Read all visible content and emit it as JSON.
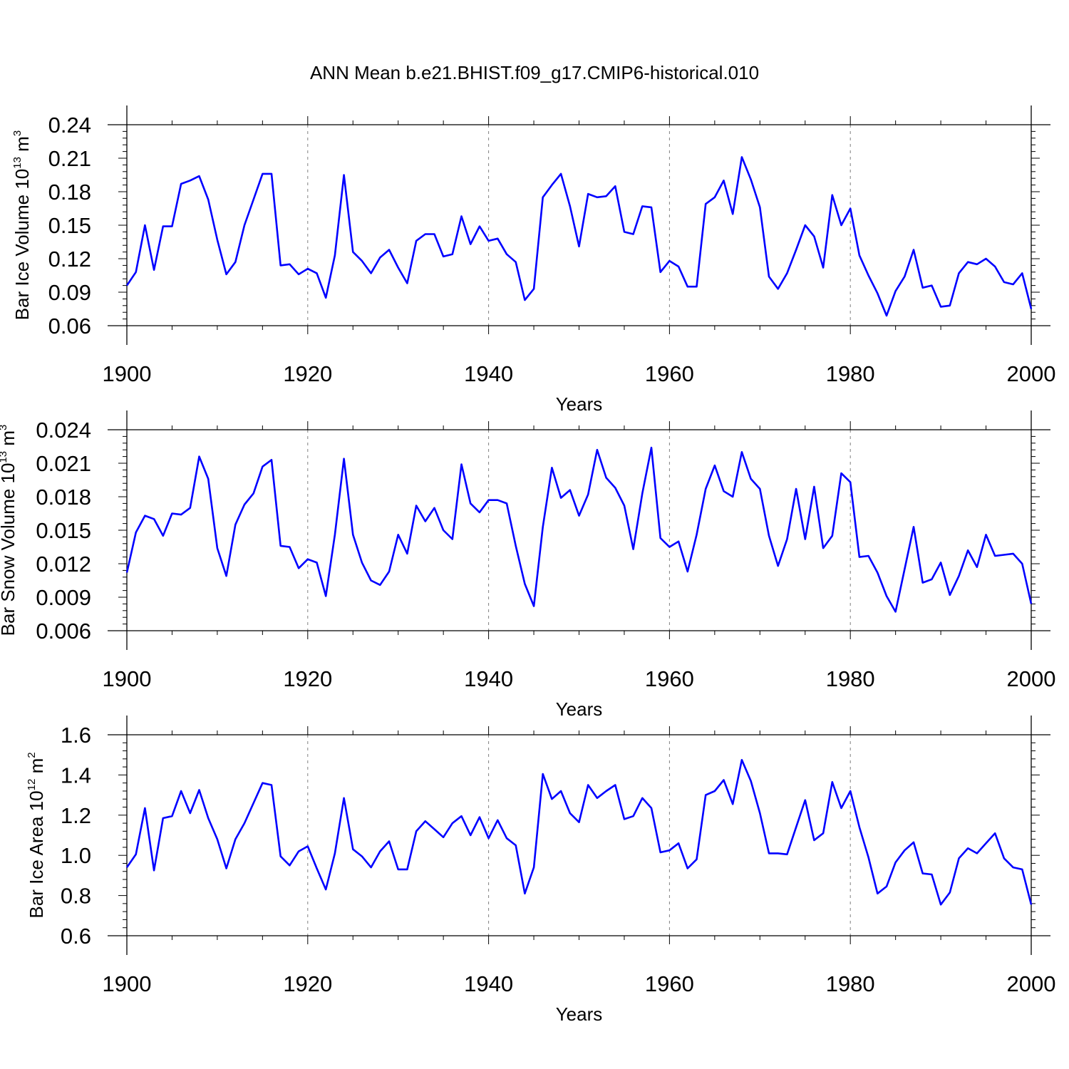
{
  "title": "ANN Mean b.e21.BHIST.f09_g17.CMIP6-historical.010",
  "colors": {
    "series": "#0000ff",
    "axis": "#000000",
    "grid": "#808080"
  },
  "chart_data": [
    {
      "type": "line",
      "title": "ANN Mean b.e21.BHIST.f09_g17.CMIP6-historical.010",
      "xlabel": "Years",
      "ylabel": {
        "text": "Bar Ice Volume 10",
        "exp": "13",
        "unit": " m",
        "unit_exp": "3"
      },
      "xlim": [
        1900,
        2000
      ],
      "ylim": [
        0.06,
        0.24
      ],
      "xticks": [
        1900,
        1920,
        1940,
        1960,
        1980,
        2000
      ],
      "xtick_labels": [
        "1900",
        "1920",
        "1940",
        "1960",
        "1980",
        "2000"
      ],
      "yticks": [
        0.06,
        0.09,
        0.12,
        0.15,
        0.18,
        0.21,
        0.24
      ],
      "ytick_labels": [
        "0.06",
        "0.09",
        "0.12",
        "0.15",
        "0.18",
        "0.21",
        "0.24"
      ],
      "grid_x": [
        1920,
        1940,
        1960,
        1980
      ],
      "series": [
        {
          "name": "Bar Ice Volume",
          "x_start": 1900,
          "values": [
            0.096,
            0.108,
            0.15,
            0.11,
            0.149,
            0.149,
            0.187,
            0.19,
            0.194,
            0.173,
            0.137,
            0.106,
            0.117,
            0.15,
            0.173,
            0.196,
            0.196,
            0.114,
            0.115,
            0.106,
            0.111,
            0.107,
            0.085,
            0.123,
            0.195,
            0.126,
            0.118,
            0.107,
            0.121,
            0.128,
            0.112,
            0.098,
            0.136,
            0.142,
            0.142,
            0.122,
            0.124,
            0.158,
            0.133,
            0.149,
            0.136,
            0.138,
            0.124,
            0.117,
            0.083,
            0.093,
            0.175,
            0.186,
            0.196,
            0.167,
            0.131,
            0.178,
            0.175,
            0.176,
            0.185,
            0.144,
            0.142,
            0.167,
            0.166,
            0.108,
            0.118,
            0.113,
            0.095,
            0.095,
            0.169,
            0.175,
            0.19,
            0.16,
            0.211,
            0.191,
            0.166,
            0.104,
            0.093,
            0.107,
            0.128,
            0.15,
            0.14,
            0.112,
            0.177,
            0.15,
            0.165,
            0.123,
            0.105,
            0.089,
            0.069,
            0.091,
            0.104,
            0.128,
            0.094,
            0.096,
            0.077,
            0.078,
            0.107,
            0.117,
            0.115,
            0.12,
            0.113,
            0.099,
            0.097,
            0.107,
            0.075
          ]
        }
      ]
    },
    {
      "type": "line",
      "title": "",
      "xlabel": "Years",
      "ylabel": {
        "text": "Bar Snow Volume 10",
        "exp": "13",
        "unit": " m",
        "unit_exp": "3"
      },
      "xlim": [
        1900,
        2000
      ],
      "ylim": [
        0.006,
        0.024
      ],
      "xticks": [
        1900,
        1920,
        1940,
        1960,
        1980,
        2000
      ],
      "xtick_labels": [
        "1900",
        "1920",
        "1940",
        "1960",
        "1980",
        "2000"
      ],
      "yticks": [
        0.006,
        0.009,
        0.012,
        0.015,
        0.018,
        0.021,
        0.024
      ],
      "ytick_labels": [
        "0.006",
        "0.009",
        "0.012",
        "0.015",
        "0.018",
        "0.021",
        "0.024"
      ],
      "grid_x": [
        1920,
        1940,
        1960,
        1980
      ],
      "series": [
        {
          "name": "Bar Snow Volume",
          "x_start": 1900,
          "values": [
            0.0112,
            0.0148,
            0.0163,
            0.016,
            0.0145,
            0.0165,
            0.0164,
            0.017,
            0.0216,
            0.0196,
            0.0134,
            0.0109,
            0.0155,
            0.0173,
            0.0183,
            0.0207,
            0.0213,
            0.0136,
            0.0135,
            0.0116,
            0.0124,
            0.0121,
            0.0091,
            0.0146,
            0.0214,
            0.0146,
            0.0121,
            0.0105,
            0.0101,
            0.0113,
            0.0146,
            0.0129,
            0.0172,
            0.0158,
            0.017,
            0.015,
            0.0142,
            0.0209,
            0.0174,
            0.0166,
            0.0177,
            0.0177,
            0.0174,
            0.0136,
            0.0102,
            0.0082,
            0.0153,
            0.0206,
            0.0179,
            0.0186,
            0.0163,
            0.0182,
            0.0222,
            0.0197,
            0.0188,
            0.0172,
            0.0133,
            0.0183,
            0.0224,
            0.0143,
            0.0135,
            0.014,
            0.0113,
            0.0146,
            0.0187,
            0.0208,
            0.0185,
            0.018,
            0.022,
            0.0196,
            0.0187,
            0.0145,
            0.0118,
            0.0142,
            0.0187,
            0.0142,
            0.0189,
            0.0134,
            0.0145,
            0.0201,
            0.0193,
            0.0126,
            0.0127,
            0.0112,
            0.0091,
            0.0077,
            0.0115,
            0.0153,
            0.0103,
            0.0106,
            0.0121,
            0.0092,
            0.0109,
            0.0132,
            0.0117,
            0.0146,
            0.0127,
            0.0128,
            0.0129,
            0.012,
            0.0084
          ]
        }
      ]
    },
    {
      "type": "line",
      "title": "",
      "xlabel": "Years",
      "ylabel": {
        "text": "Bar Ice Area 10",
        "exp": "12",
        "unit": " m",
        "unit_exp": "2"
      },
      "xlim": [
        1900,
        2000
      ],
      "ylim": [
        0.6,
        1.6
      ],
      "xticks": [
        1900,
        1920,
        1940,
        1960,
        1980,
        2000
      ],
      "xtick_labels": [
        "1900",
        "1920",
        "1940",
        "1960",
        "1980",
        "2000"
      ],
      "yticks": [
        0.6,
        0.8,
        1.0,
        1.2,
        1.4,
        1.6
      ],
      "ytick_labels": [
        "0.6",
        "0.8",
        "1.0",
        "1.2",
        "1.4",
        "1.6"
      ],
      "grid_x": [
        1920,
        1940,
        1960,
        1980
      ],
      "series": [
        {
          "name": "Bar Ice Area",
          "x_start": 1900,
          "values": [
            0.94,
            1.005,
            1.235,
            0.925,
            1.185,
            1.195,
            1.32,
            1.21,
            1.325,
            1.185,
            1.08,
            0.935,
            1.08,
            1.16,
            1.26,
            1.36,
            1.35,
            0.995,
            0.95,
            1.02,
            1.045,
            0.935,
            0.83,
            1.01,
            1.285,
            1.03,
            0.995,
            0.94,
            1.02,
            1.07,
            0.93,
            0.93,
            1.12,
            1.17,
            1.13,
            1.09,
            1.16,
            1.195,
            1.1,
            1.19,
            1.085,
            1.175,
            1.085,
            1.05,
            0.81,
            0.94,
            1.405,
            1.28,
            1.32,
            1.21,
            1.165,
            1.35,
            1.285,
            1.32,
            1.35,
            1.18,
            1.195,
            1.285,
            1.235,
            1.015,
            1.025,
            1.06,
            0.935,
            0.98,
            1.3,
            1.32,
            1.375,
            1.255,
            1.475,
            1.37,
            1.21,
            1.01,
            1.01,
            1.005,
            1.14,
            1.275,
            1.075,
            1.11,
            1.365,
            1.235,
            1.32,
            1.14,
            0.99,
            0.81,
            0.845,
            0.965,
            1.025,
            1.065,
            0.91,
            0.905,
            0.755,
            0.815,
            0.985,
            1.035,
            1.01,
            1.06,
            1.11,
            0.985,
            0.94,
            0.93,
            0.755
          ]
        }
      ]
    }
  ]
}
